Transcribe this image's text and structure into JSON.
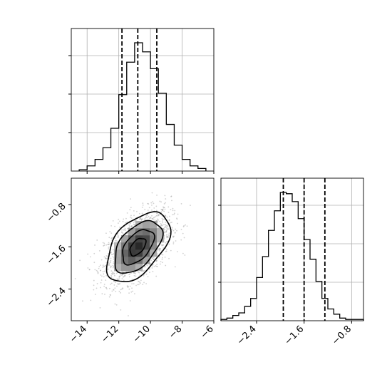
{
  "chart_data": [
    {
      "type": "histogram",
      "panel": "top-left marginal (parameter 1)",
      "bins_x": [
        -14.5,
        -14.0,
        -13.5,
        -13.0,
        -12.5,
        -12.0,
        -11.5,
        -11.0,
        -10.5,
        -10.0,
        -9.5,
        -9.0,
        -8.5,
        -8.0,
        -7.5,
        -7.0,
        -6.5
      ],
      "counts": [
        0.01,
        0.04,
        0.09,
        0.18,
        0.33,
        0.59,
        0.84,
        0.99,
        0.92,
        0.79,
        0.6,
        0.36,
        0.2,
        0.09,
        0.04,
        0.02
      ],
      "quantile_lines": [
        -11.8,
        -10.8,
        -9.6
      ],
      "xlim": [
        -15,
        -6
      ],
      "grid": true,
      "tick_labels_shown": false
    },
    {
      "type": "heatmap",
      "panel": "bottom-left 2D density (parameter 1 vs parameter 2)",
      "xlim": [
        -15,
        -6
      ],
      "ylim": [
        -3.0,
        -0.3
      ],
      "x_tick_values": [
        -14,
        -12,
        -10,
        -8,
        -6
      ],
      "x_tick_labels": [
        "−14",
        "−12",
        "−10",
        "−8",
        "−6"
      ],
      "y_tick_values": [
        -2.4,
        -1.6,
        -0.8
      ],
      "y_tick_labels": [
        "−2.4",
        "−1.6",
        "−0.8"
      ],
      "center": [
        -10.8,
        -1.6
      ],
      "x_std": 1.0,
      "y_std": 0.33,
      "correlation": 0.5,
      "contour_levels_sigma": [
        0.5,
        1.0,
        1.5,
        2.0
      ],
      "scatter_points": "light gray cloud",
      "grid": false
    },
    {
      "type": "histogram",
      "panel": "bottom-right marginal (parameter 2)",
      "bins_x": [
        -3.0,
        -2.9,
        -2.8,
        -2.7,
        -2.6,
        -2.5,
        -2.4,
        -2.3,
        -2.2,
        -2.1,
        -2.0,
        -1.9,
        -1.8,
        -1.7,
        -1.6,
        -1.5,
        -1.4,
        -1.3,
        -1.2,
        -1.1,
        -1.0,
        -0.9,
        -0.8,
        -0.7,
        -0.6
      ],
      "counts": [
        0.01,
        0.02,
        0.04,
        0.06,
        0.11,
        0.17,
        0.33,
        0.49,
        0.69,
        0.84,
        0.98,
        0.97,
        0.91,
        0.78,
        0.62,
        0.47,
        0.3,
        0.17,
        0.09,
        0.05,
        0.02,
        0.01,
        0.01,
        0.01
      ],
      "quantile_lines": [
        -1.95,
        -1.6,
        -1.25
      ],
      "xlim": [
        -3.0,
        -0.6
      ],
      "x_tick_values": [
        -2.4,
        -1.6,
        -0.8
      ],
      "x_tick_labels": [
        "−2.4",
        "−1.6",
        "−0.8"
      ],
      "grid": true
    }
  ]
}
